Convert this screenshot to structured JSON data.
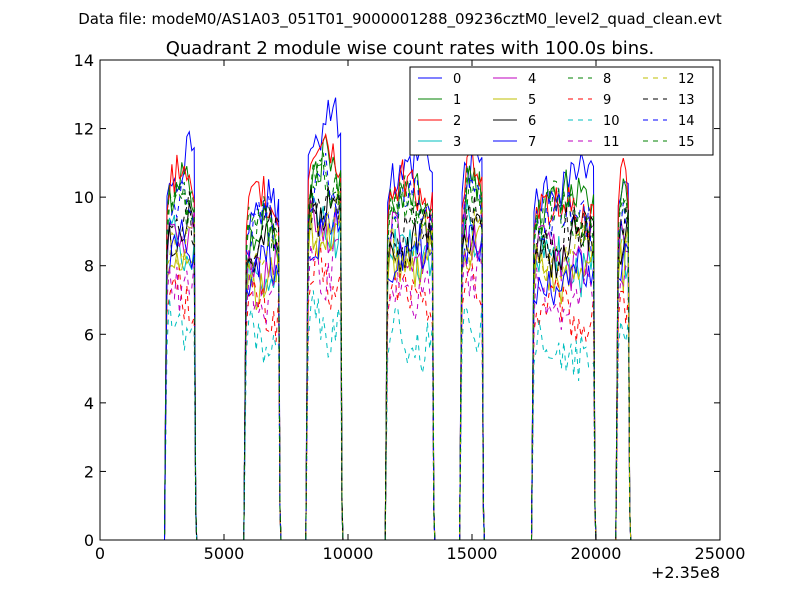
{
  "supertitle": "Data file: modeM0/AS1A03_051T01_9000001288_09236cztM0_level2_quad_clean.evt",
  "chart_data": {
    "type": "line",
    "title": "Quadrant 2 module wise count rates with 100.0s bins.",
    "xlabel": "",
    "ylabel": "",
    "xlim": [
      0,
      25000
    ],
    "ylim": [
      0,
      14
    ],
    "x_offset_label": "+2.35e8",
    "xticks": [
      0,
      5000,
      10000,
      15000,
      20000,
      25000
    ],
    "yticks": [
      0,
      2,
      4,
      6,
      8,
      10,
      12,
      14
    ],
    "grid": false,
    "legend": {
      "placement": "top-right",
      "columns": 4
    },
    "segments": [
      {
        "start": 2700,
        "end": 3800
      },
      {
        "start": 5900,
        "end": 7200
      },
      {
        "start": 8400,
        "end": 9700
      },
      {
        "start": 11600,
        "end": 13400
      },
      {
        "start": 14600,
        "end": 15400
      },
      {
        "start": 17500,
        "end": 19900
      },
      {
        "start": 20900,
        "end": 21300
      }
    ],
    "series": [
      {
        "name": "0",
        "color": "#0000ff",
        "style": "solid",
        "levels": [
          10.9,
          9.6,
          12.2,
          10.7,
          11.0,
          10.4,
          10.6
        ]
      },
      {
        "name": "1",
        "color": "#008000",
        "style": "solid",
        "levels": [
          10.3,
          9.0,
          10.8,
          10.0,
          10.2,
          9.9,
          10.2
        ]
      },
      {
        "name": "2",
        "color": "#ff0000",
        "style": "solid",
        "levels": [
          10.4,
          9.8,
          11.4,
          10.2,
          10.5,
          9.6,
          10.6
        ]
      },
      {
        "name": "3",
        "color": "#00bfbf",
        "style": "solid",
        "levels": [
          8.6,
          7.8,
          9.2,
          8.4,
          8.9,
          8.1,
          8.5
        ]
      },
      {
        "name": "4",
        "color": "#bf00bf",
        "style": "solid",
        "levels": [
          8.8,
          8.0,
          9.3,
          8.6,
          9.0,
          8.3,
          8.7
        ]
      },
      {
        "name": "5",
        "color": "#bfbf00",
        "style": "solid",
        "levels": [
          8.2,
          7.6,
          8.9,
          8.0,
          8.5,
          7.8,
          8.2
        ]
      },
      {
        "name": "6",
        "color": "#000000",
        "style": "solid",
        "levels": [
          9.1,
          8.6,
          9.8,
          8.7,
          9.2,
          8.6,
          9.0
        ]
      },
      {
        "name": "7",
        "color": "#0000ff",
        "style": "solid",
        "levels": [
          8.5,
          8.0,
          9.0,
          8.3,
          8.6,
          7.6,
          8.3
        ]
      },
      {
        "name": "8",
        "color": "#008000",
        "style": "dashed",
        "levels": [
          9.6,
          9.0,
          10.1,
          9.4,
          9.8,
          9.2,
          9.5
        ]
      },
      {
        "name": "9",
        "color": "#ff0000",
        "style": "dashed",
        "levels": [
          7.2,
          6.7,
          7.5,
          7.1,
          7.4,
          6.6,
          7.0
        ]
      },
      {
        "name": "10",
        "color": "#00bfbf",
        "style": "dashed",
        "levels": [
          6.1,
          5.9,
          6.3,
          5.8,
          6.3,
          5.6,
          6.0
        ]
      },
      {
        "name": "11",
        "color": "#bf00bf",
        "style": "dashed",
        "levels": [
          7.6,
          7.2,
          7.9,
          7.3,
          7.7,
          7.0,
          7.4
        ]
      },
      {
        "name": "12",
        "color": "#bfbf00",
        "style": "dashed",
        "levels": [
          8.7,
          8.3,
          9.2,
          8.6,
          8.9,
          8.4,
          8.6
        ]
      },
      {
        "name": "13",
        "color": "#000000",
        "style": "dashed",
        "levels": [
          9.3,
          8.9,
          9.9,
          9.1,
          9.4,
          8.9,
          9.2
        ]
      },
      {
        "name": "14",
        "color": "#0000ff",
        "style": "dashed",
        "levels": [
          9.8,
          9.2,
          10.3,
          9.6,
          9.9,
          9.4,
          9.8
        ]
      },
      {
        "name": "15",
        "color": "#008000",
        "style": "dashed",
        "levels": [
          9.9,
          9.3,
          10.5,
          9.7,
          10.0,
          9.5,
          9.9
        ]
      }
    ]
  }
}
